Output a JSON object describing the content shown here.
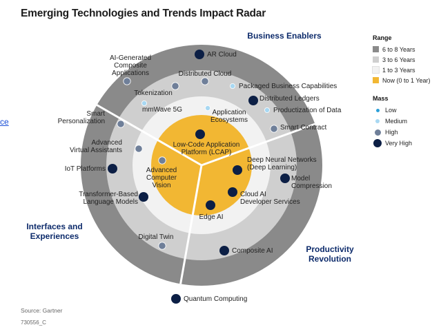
{
  "title": "Emerging Technologies and Trends Impact Radar",
  "side_link": "ce",
  "sections": [
    {
      "id": "business",
      "lines": [
        "Business Enablers"
      ],
      "color": "#0d2b6b"
    },
    {
      "id": "interfaces",
      "lines": [
        "Interfaces and",
        "Experiences"
      ],
      "color": "#0d2b6b"
    },
    {
      "id": "productivity",
      "lines": [
        "Productivity",
        "Revolution"
      ],
      "color": "#0d2b6b"
    }
  ],
  "rings": [
    {
      "name": "6 to 8 Years",
      "color": "#8a8a8a"
    },
    {
      "name": "3 to 6 Years",
      "color": "#cfcfcf"
    },
    {
      "name": "1 to 3 Years",
      "color": "#f2f2f2"
    },
    {
      "name": "Now (0 to 1 Year)",
      "color": "#f2b733"
    }
  ],
  "legend": {
    "range_title": "Range",
    "mass_title": "Mass",
    "mass": [
      {
        "name": "Low",
        "color": "#2a9fd8",
        "size": "low"
      },
      {
        "name": "Medium",
        "color": "#a8d8f2",
        "size": "medium"
      },
      {
        "name": "High",
        "color": "#6f7f99",
        "size": "high"
      },
      {
        "name": "Very High",
        "color": "#0c1f45",
        "size": "very-high"
      }
    ]
  },
  "technologies": [
    {
      "name": "AR Cloud",
      "lines": [
        "AR Cloud"
      ],
      "mass": "very-high",
      "range": "6 to 8 Years",
      "sector": "Business Enablers"
    },
    {
      "name": "AI-Generated Composite Applications",
      "lines": [
        "AI-Generated",
        "Composite",
        "Applications"
      ],
      "mass": "high",
      "range": "3 to 6 Years",
      "sector": "Interfaces and Experiences"
    },
    {
      "name": "Distributed Cloud",
      "lines": [
        "Distributed Cloud"
      ],
      "mass": "high",
      "range": "3 to 6 Years",
      "sector": "Business Enablers"
    },
    {
      "name": "Packaged Business Capabilities",
      "lines": [
        "Packaged Business Capabilities"
      ],
      "mass": "medium",
      "range": "3 to 6 Years",
      "sector": "Business Enablers"
    },
    {
      "name": "Tokenization",
      "lines": [
        "Tokenization"
      ],
      "mass": "high",
      "range": "3 to 6 Years",
      "sector": "Business Enablers"
    },
    {
      "name": "Distributed Ledgers",
      "lines": [
        "Distributed Ledgers"
      ],
      "mass": "very-high",
      "range": "3 to 6 Years",
      "sector": "Business Enablers"
    },
    {
      "name": "mmWave 5G",
      "lines": [
        "mmWave 5G"
      ],
      "mass": "medium",
      "range": "1 to 3 Years",
      "sector": "Business Enablers"
    },
    {
      "name": "Productization of Data",
      "lines": [
        "Productization of Data"
      ],
      "mass": "medium",
      "range": "3 to 6 Years",
      "sector": "Business Enablers"
    },
    {
      "name": "Application Ecosystems",
      "lines": [
        "Application",
        "Ecosystems"
      ],
      "mass": "medium",
      "range": "1 to 3 Years",
      "sector": "Business Enablers"
    },
    {
      "name": "Smart Personalization",
      "lines": [
        "Smart",
        "Personalization"
      ],
      "mass": "high",
      "range": "3 to 6 Years",
      "sector": "Interfaces and Experiences"
    },
    {
      "name": "Smart Contract",
      "lines": [
        "Smart Contract"
      ],
      "mass": "high",
      "range": "3 to 6 Years",
      "sector": "Business Enablers"
    },
    {
      "name": "Low-Code Application Platform (LCAP)",
      "lines": [
        "Low-Code Application",
        "Platform (LCAP)"
      ],
      "mass": "very-high",
      "range": "Now (0 to 1 Year)",
      "sector": "Business Enablers"
    },
    {
      "name": "Advanced Virtual Assistants",
      "lines": [
        "Advanced",
        "Virtual Assistants"
      ],
      "mass": "high",
      "range": "1 to 3 Years",
      "sector": "Interfaces and Experiences"
    },
    {
      "name": "Deep Neural Networks (Deep Learning)",
      "lines": [
        "Deep Neural Networks",
        "(Deep Learning)"
      ],
      "mass": "very-high",
      "range": "Now (0 to 1 Year)",
      "sector": "Productivity Revolution"
    },
    {
      "name": "IoT Platforms",
      "lines": [
        "IoT Platforms"
      ],
      "mass": "very-high",
      "range": "3 to 6 Years",
      "sector": "Interfaces and Experiences"
    },
    {
      "name": "Advanced Computer Vision",
      "lines": [
        "Advanced",
        "Computer",
        "Vision"
      ],
      "mass": "high",
      "range": "Now (0 to 1 Year)",
      "sector": "Interfaces and Experiences"
    },
    {
      "name": "Model Compression",
      "lines": [
        "Model",
        "Compression"
      ],
      "mass": "very-high",
      "range": "3 to 6 Years",
      "sector": "Productivity Revolution"
    },
    {
      "name": "Transformer-Based Language Models",
      "lines": [
        "Transformer-Based",
        "Language Models"
      ],
      "mass": "very-high",
      "range": "1 to 3 Years",
      "sector": "Interfaces and Experiences"
    },
    {
      "name": "Cloud AI Developer Services",
      "lines": [
        "Cloud AI",
        "Developer Services"
      ],
      "mass": "very-high",
      "range": "Now (0 to 1 Year)",
      "sector": "Productivity Revolution"
    },
    {
      "name": "Edge AI",
      "lines": [
        "Edge AI"
      ],
      "mass": "very-high",
      "range": "Now (0 to 1 Year)",
      "sector": "Productivity Revolution"
    },
    {
      "name": "Digital Twin",
      "lines": [
        "Digital Twin"
      ],
      "mass": "high",
      "range": "3 to 6 Years",
      "sector": "Interfaces and Experiences"
    },
    {
      "name": "Composite AI",
      "lines": [
        "Composite AI"
      ],
      "mass": "very-high",
      "range": "3 to 6 Years",
      "sector": "Productivity Revolution"
    },
    {
      "name": "Quantum Computing",
      "lines": [
        "Quantum Computing"
      ],
      "mass": "very-high",
      "range": "6 to 8 Years",
      "sector": "Productivity Revolution"
    }
  ],
  "source": "Source: Gartner",
  "doc_id": "730556_C"
}
